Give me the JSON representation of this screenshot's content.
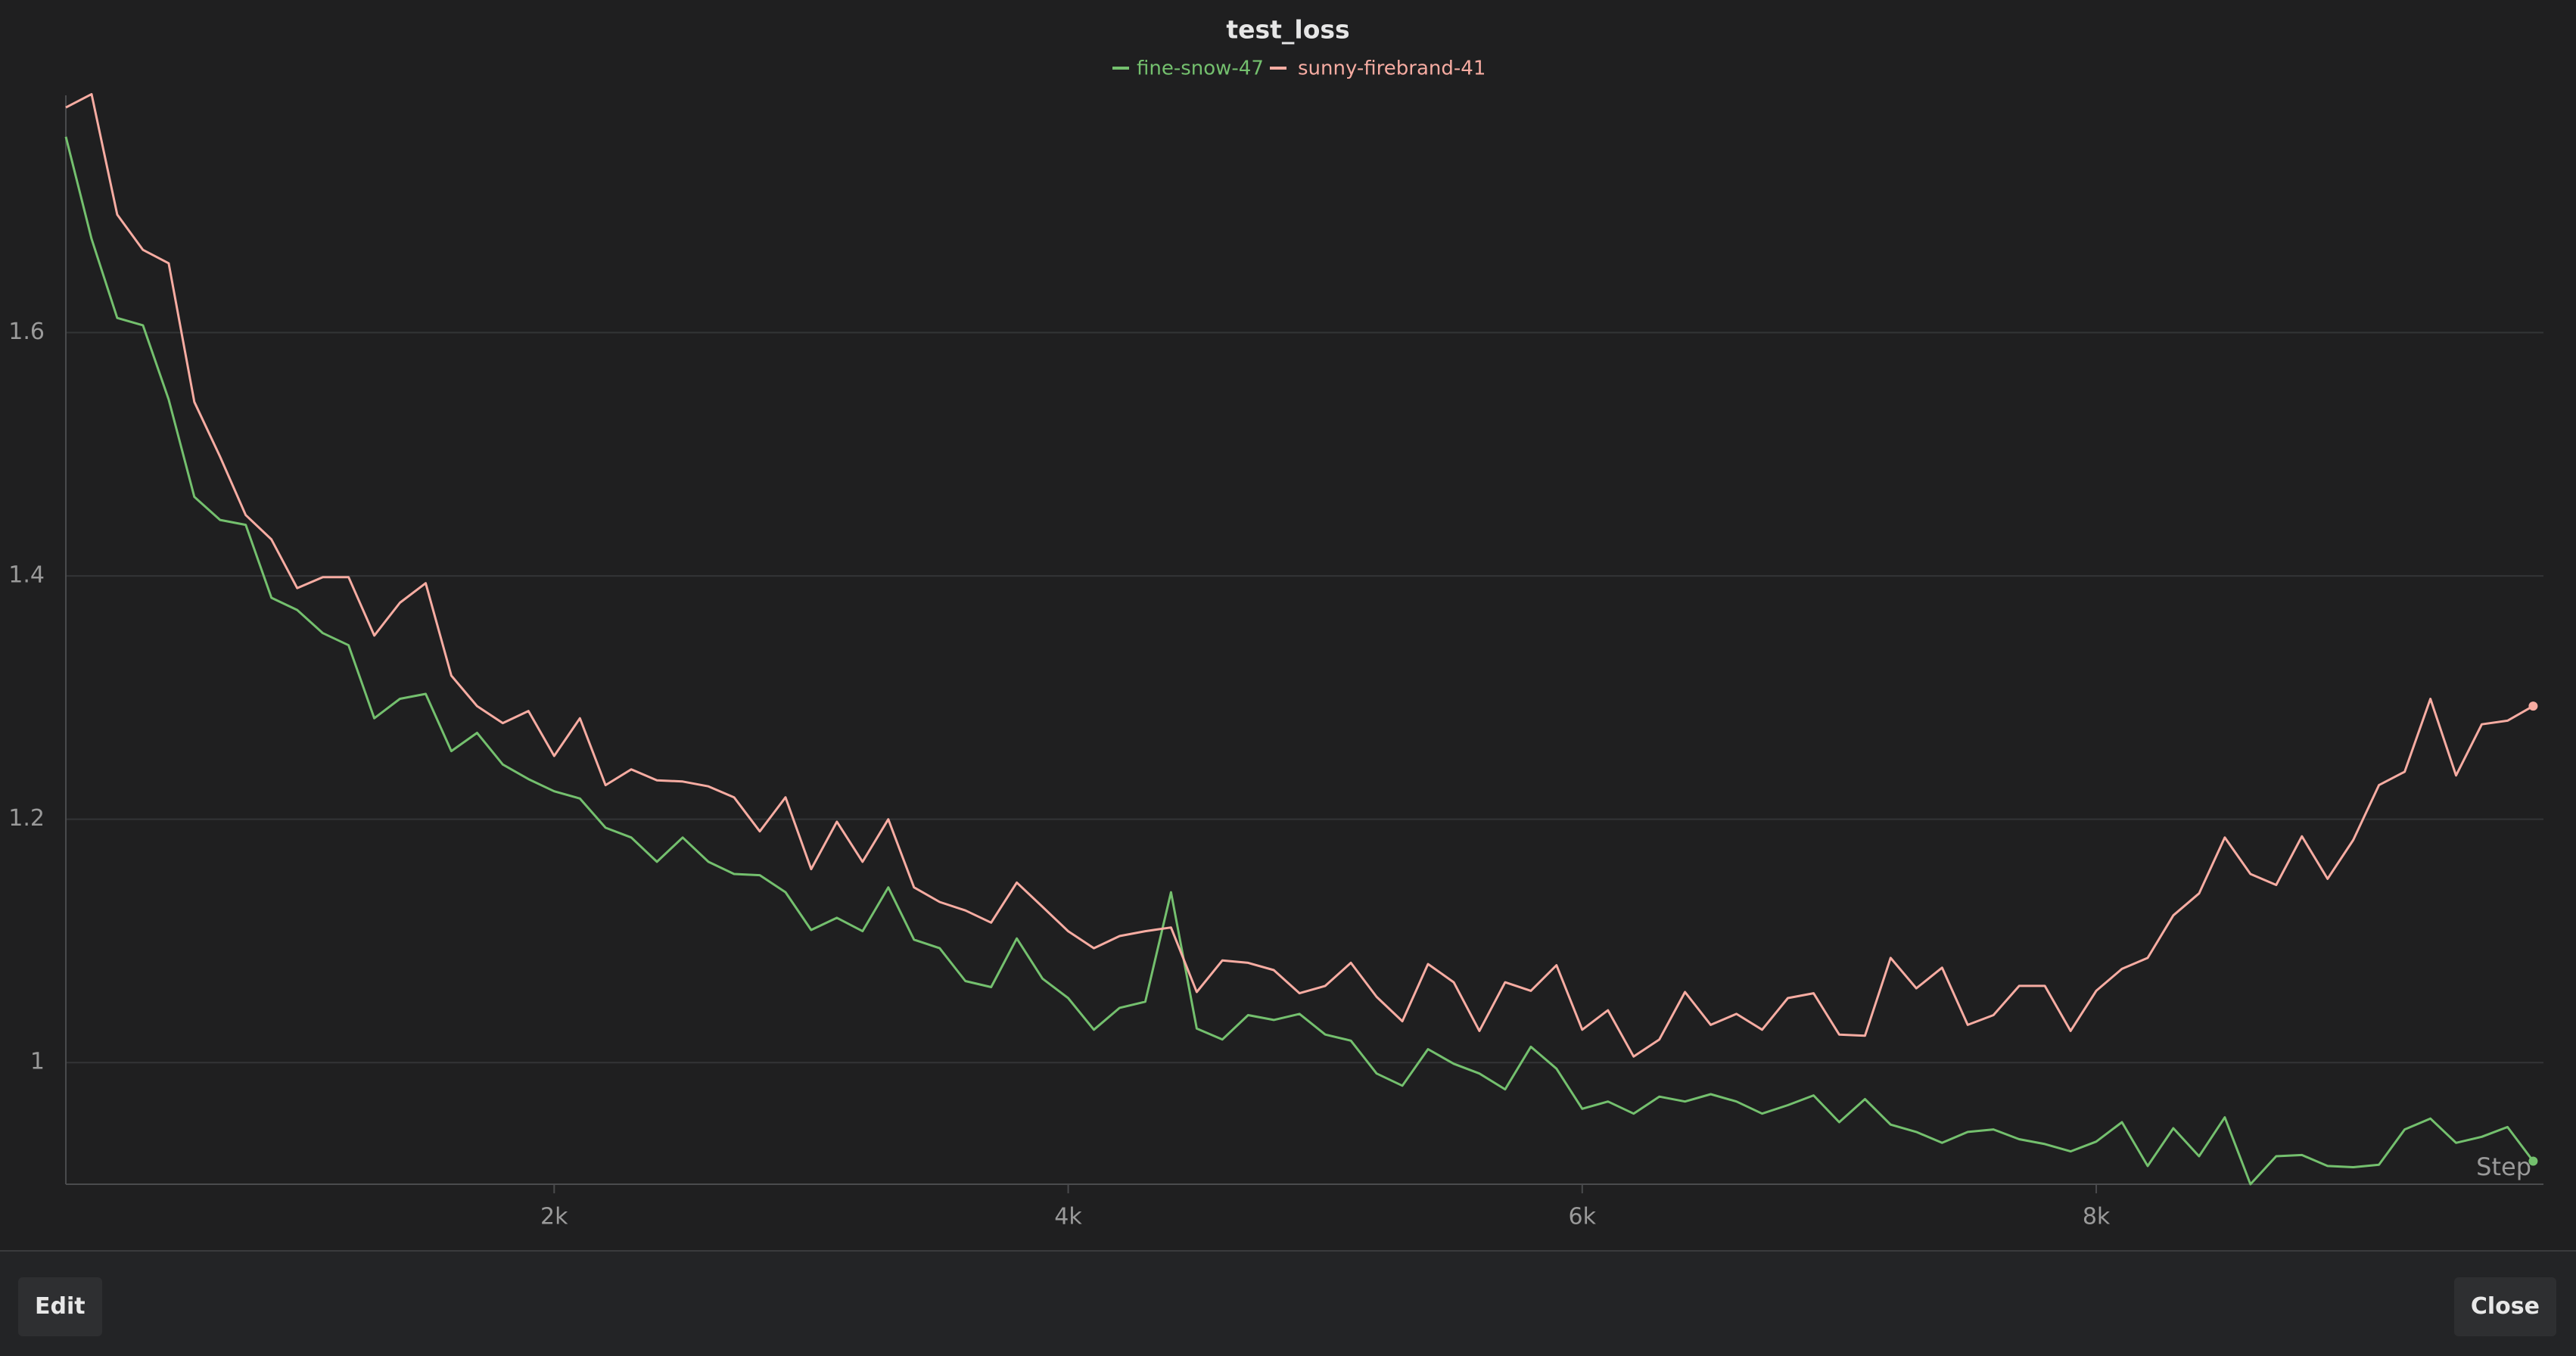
{
  "chart_data": {
    "type": "line",
    "title": "test_loss",
    "x_label": "Step",
    "x": [
      100,
      200,
      300,
      400,
      500,
      600,
      700,
      800,
      900,
      1000,
      1100,
      1200,
      1300,
      1400,
      1500,
      1600,
      1700,
      1800,
      1900,
      2000,
      2100,
      2200,
      2300,
      2400,
      2500,
      2600,
      2700,
      2800,
      2900,
      3000,
      3100,
      3200,
      3300,
      3400,
      3500,
      3600,
      3700,
      3800,
      3900,
      4000,
      4100,
      4200,
      4300,
      4400,
      4500,
      4600,
      4700,
      4800,
      4900,
      5000,
      5100,
      5200,
      5300,
      5400,
      5500,
      5600,
      5700,
      5800,
      5900,
      6000,
      6100,
      6200,
      6300,
      6400,
      6500,
      6600,
      6700,
      6800,
      6900,
      7000,
      7100,
      7200,
      7300,
      7400,
      7500,
      7600,
      7700,
      7800,
      7900,
      8000,
      8100,
      8200,
      8300,
      8400,
      8500,
      8600,
      8700,
      8800,
      8900,
      9000,
      9100,
      9200,
      9300,
      9400,
      9500,
      9600,
      9700
    ],
    "series": [
      {
        "name": "fine-snow-47",
        "color": "#74c06e",
        "values": [
          1.761,
          1.677,
          1.612,
          1.606,
          1.545,
          1.465,
          1.446,
          1.442,
          1.382,
          1.372,
          1.353,
          1.343,
          1.283,
          1.299,
          1.303,
          1.256,
          1.271,
          1.245,
          1.233,
          1.223,
          1.217,
          1.193,
          1.185,
          1.165,
          1.185,
          1.165,
          1.155,
          1.154,
          1.14,
          1.109,
          1.119,
          1.108,
          1.144,
          1.101,
          1.094,
          1.067,
          1.062,
          1.102,
          1.069,
          1.053,
          1.027,
          1.045,
          1.05,
          1.14,
          1.028,
          1.019,
          1.039,
          1.035,
          1.04,
          1.023,
          1.018,
          0.991,
          0.981,
          1.011,
          0.999,
          0.991,
          0.978,
          1.013,
          0.995,
          0.962,
          0.968,
          0.958,
          0.972,
          0.968,
          0.974,
          0.968,
          0.958,
          0.965,
          0.973,
          0.951,
          0.97,
          0.949,
          0.943,
          0.934,
          0.943,
          0.945,
          0.937,
          0.933,
          0.927,
          0.935,
          0.951,
          0.915,
          0.946,
          0.923,
          0.955,
          0.9,
          0.923,
          0.924,
          0.915,
          0.914,
          0.916,
          0.945,
          0.954,
          0.934,
          0.939,
          0.947,
          0.919
        ]
      },
      {
        "name": "sunny-firebrand-41",
        "color": "#f7aca2",
        "values": [
          1.785,
          1.796,
          1.697,
          1.668,
          1.657,
          1.543,
          1.498,
          1.45,
          1.43,
          1.39,
          1.399,
          1.399,
          1.351,
          1.378,
          1.394,
          1.318,
          1.293,
          1.279,
          1.289,
          1.252,
          1.283,
          1.228,
          1.241,
          1.232,
          1.231,
          1.227,
          1.218,
          1.19,
          1.218,
          1.159,
          1.198,
          1.165,
          1.2,
          1.144,
          1.132,
          1.125,
          1.115,
          1.148,
          1.128,
          1.108,
          1.094,
          1.104,
          1.108,
          1.111,
          1.058,
          1.084,
          1.082,
          1.076,
          1.057,
          1.063,
          1.082,
          1.054,
          1.034,
          1.081,
          1.066,
          1.026,
          1.066,
          1.059,
          1.08,
          1.027,
          1.043,
          1.005,
          1.019,
          1.058,
          1.031,
          1.04,
          1.027,
          1.053,
          1.057,
          1.023,
          1.022,
          1.086,
          1.061,
          1.078,
          1.031,
          1.039,
          1.063,
          1.063,
          1.026,
          1.059,
          1.077,
          1.086,
          1.121,
          1.139,
          1.185,
          1.155,
          1.146,
          1.186,
          1.151,
          1.183,
          1.228,
          1.239,
          1.299,
          1.236,
          1.278,
          1.281,
          1.293
        ]
      }
    ],
    "xlim": [
      100,
      9740
    ],
    "xticks": [
      {
        "value": 2000,
        "label": "2k"
      },
      {
        "value": 4000,
        "label": "4k"
      },
      {
        "value": 6000,
        "label": "6k"
      },
      {
        "value": 8000,
        "label": "8k"
      }
    ],
    "ylim": [
      0.9,
      1.795
    ],
    "yticks": [
      1,
      1.2,
      1.4,
      1.6
    ],
    "grid": true,
    "legend": "top"
  },
  "buttons": [
    "Edit",
    "Close"
  ]
}
